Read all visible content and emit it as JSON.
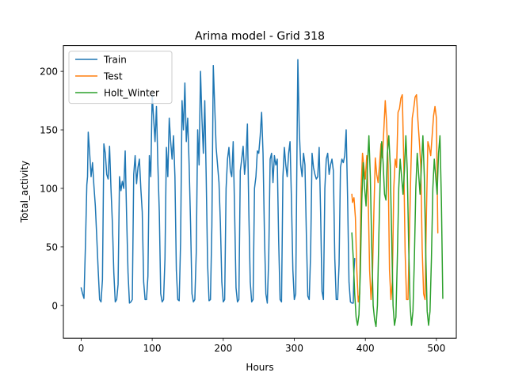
{
  "chart_data": {
    "type": "line",
    "title": "Arima model - Grid 318",
    "xlabel": "Hours",
    "ylabel": "Total_activity",
    "xlim": [
      -25,
      528
    ],
    "ylim": [
      -28,
      222
    ],
    "xticks": [
      0,
      100,
      200,
      300,
      400,
      500
    ],
    "yticks": [
      0,
      50,
      100,
      150,
      200
    ],
    "grid": false,
    "legend_position": "top-left",
    "series": [
      {
        "name": "Train",
        "color": "#1f77b4",
        "points": [
          [
            0,
            15
          ],
          [
            2,
            10
          ],
          [
            4,
            6
          ],
          [
            6,
            50
          ],
          [
            8,
            103
          ],
          [
            9,
            110
          ],
          [
            10,
            148
          ],
          [
            12,
            130
          ],
          [
            14,
            110
          ],
          [
            16,
            122
          ],
          [
            18,
            102
          ],
          [
            20,
            85
          ],
          [
            22,
            58
          ],
          [
            24,
            30
          ],
          [
            26,
            5
          ],
          [
            28,
            3
          ],
          [
            30,
            22
          ],
          [
            32,
            138
          ],
          [
            34,
            130
          ],
          [
            36,
            112
          ],
          [
            38,
            108
          ],
          [
            40,
            136
          ],
          [
            42,
            100
          ],
          [
            44,
            70
          ],
          [
            46,
            28
          ],
          [
            48,
            3
          ],
          [
            50,
            5
          ],
          [
            52,
            18
          ],
          [
            54,
            110
          ],
          [
            56,
            98
          ],
          [
            58,
            106
          ],
          [
            60,
            100
          ],
          [
            62,
            132
          ],
          [
            64,
            76
          ],
          [
            66,
            28
          ],
          [
            68,
            2
          ],
          [
            70,
            3
          ],
          [
            72,
            5
          ],
          [
            74,
            112
          ],
          [
            76,
            128
          ],
          [
            78,
            104
          ],
          [
            80,
            118
          ],
          [
            82,
            125
          ],
          [
            84,
            100
          ],
          [
            86,
            80
          ],
          [
            88,
            20
          ],
          [
            90,
            5
          ],
          [
            92,
            5
          ],
          [
            94,
            25
          ],
          [
            96,
            128
          ],
          [
            98,
            110
          ],
          [
            100,
            180
          ],
          [
            102,
            160
          ],
          [
            104,
            140
          ],
          [
            106,
            170
          ],
          [
            108,
            120
          ],
          [
            110,
            80
          ],
          [
            112,
            10
          ],
          [
            114,
            3
          ],
          [
            116,
            5
          ],
          [
            118,
            40
          ],
          [
            120,
            135
          ],
          [
            122,
            110
          ],
          [
            124,
            160
          ],
          [
            126,
            140
          ],
          [
            128,
            125
          ],
          [
            130,
            145
          ],
          [
            132,
            110
          ],
          [
            134,
            30
          ],
          [
            136,
            5
          ],
          [
            138,
            4
          ],
          [
            140,
            55
          ],
          [
            142,
            175
          ],
          [
            144,
            150
          ],
          [
            146,
            190
          ],
          [
            148,
            140
          ],
          [
            150,
            160
          ],
          [
            152,
            120
          ],
          [
            154,
            70
          ],
          [
            156,
            10
          ],
          [
            158,
            3
          ],
          [
            160,
            5
          ],
          [
            162,
            45
          ],
          [
            164,
            150
          ],
          [
            166,
            120
          ],
          [
            168,
            200
          ],
          [
            170,
            160
          ],
          [
            172,
            130
          ],
          [
            174,
            175
          ],
          [
            176,
            110
          ],
          [
            178,
            35
          ],
          [
            180,
            4
          ],
          [
            182,
            5
          ],
          [
            184,
            68
          ],
          [
            186,
            205
          ],
          [
            188,
            170
          ],
          [
            190,
            135
          ],
          [
            192,
            120
          ],
          [
            194,
            105
          ],
          [
            196,
            70
          ],
          [
            198,
            20
          ],
          [
            200,
            3
          ],
          [
            202,
            5
          ],
          [
            204,
            100
          ],
          [
            206,
            125
          ],
          [
            208,
            135
          ],
          [
            210,
            115
          ],
          [
            212,
            110
          ],
          [
            214,
            140
          ],
          [
            216,
            80
          ],
          [
            218,
            15
          ],
          [
            220,
            3
          ],
          [
            222,
            5
          ],
          [
            224,
            115
          ],
          [
            226,
            125
          ],
          [
            228,
            136
          ],
          [
            230,
            112
          ],
          [
            232,
            125
          ],
          [
            234,
            155
          ],
          [
            236,
            80
          ],
          [
            238,
            20
          ],
          [
            240,
            3
          ],
          [
            242,
            5
          ],
          [
            244,
            100
          ],
          [
            246,
            110
          ],
          [
            248,
            132
          ],
          [
            250,
            130
          ],
          [
            252,
            145
          ],
          [
            254,
            165
          ],
          [
            256,
            130
          ],
          [
            258,
            60
          ],
          [
            260,
            10
          ],
          [
            262,
            2
          ],
          [
            264,
            40
          ],
          [
            266,
            125
          ],
          [
            268,
            130
          ],
          [
            270,
            105
          ],
          [
            272,
            128
          ],
          [
            274,
            120
          ],
          [
            276,
            125
          ],
          [
            278,
            55
          ],
          [
            280,
            5
          ],
          [
            282,
            3
          ],
          [
            284,
            110
          ],
          [
            286,
            135
          ],
          [
            288,
            120
          ],
          [
            290,
            110
          ],
          [
            292,
            130
          ],
          [
            294,
            140
          ],
          [
            296,
            90
          ],
          [
            298,
            30
          ],
          [
            300,
            5
          ],
          [
            302,
            10
          ],
          [
            304,
            148
          ],
          [
            305,
            210
          ],
          [
            307,
            150
          ],
          [
            309,
            120
          ],
          [
            311,
            110
          ],
          [
            313,
            130
          ],
          [
            315,
            120
          ],
          [
            317,
            60
          ],
          [
            319,
            8
          ],
          [
            321,
            5
          ],
          [
            323,
            45
          ],
          [
            325,
            130
          ],
          [
            327,
            118
          ],
          [
            329,
            112
          ],
          [
            331,
            108
          ],
          [
            333,
            110
          ],
          [
            335,
            135
          ],
          [
            337,
            80
          ],
          [
            339,
            12
          ],
          [
            341,
            5
          ],
          [
            343,
            100
          ],
          [
            345,
            125
          ],
          [
            347,
            130
          ],
          [
            349,
            112
          ],
          [
            351,
            120
          ],
          [
            353,
            125
          ],
          [
            355,
            115
          ],
          [
            357,
            40
          ],
          [
            359,
            5
          ],
          [
            361,
            5
          ],
          [
            363,
            35
          ],
          [
            365,
            118
          ],
          [
            367,
            125
          ],
          [
            369,
            122
          ],
          [
            371,
            128
          ],
          [
            373,
            150
          ],
          [
            375,
            92
          ],
          [
            377,
            20
          ],
          [
            379,
            3
          ],
          [
            381,
            2
          ],
          [
            383,
            2
          ],
          [
            384,
            30
          ],
          [
            385,
            40
          ]
        ]
      },
      {
        "name": "Test",
        "color": "#ff7f0e",
        "points": [
          [
            381,
            95
          ],
          [
            382,
            88
          ],
          [
            384,
            92
          ],
          [
            386,
            75
          ],
          [
            388,
            30
          ],
          [
            390,
            3
          ],
          [
            392,
            10
          ],
          [
            394,
            100
          ],
          [
            396,
            130
          ],
          [
            398,
            118
          ],
          [
            400,
            108
          ],
          [
            402,
            128
          ],
          [
            404,
            92
          ],
          [
            406,
            30
          ],
          [
            408,
            5
          ],
          [
            410,
            25
          ],
          [
            412,
            80
          ],
          [
            414,
            126
          ],
          [
            416,
            112
          ],
          [
            418,
            105
          ],
          [
            420,
            121
          ],
          [
            422,
            138
          ],
          [
            424,
            126
          ],
          [
            426,
            150
          ],
          [
            428,
            175
          ],
          [
            430,
            155
          ],
          [
            432,
            120
          ],
          [
            434,
            30
          ],
          [
            436,
            5
          ],
          [
            438,
            20
          ],
          [
            440,
            100
          ],
          [
            442,
            125
          ],
          [
            444,
            118
          ],
          [
            446,
            165
          ],
          [
            448,
            168
          ],
          [
            450,
            177
          ],
          [
            452,
            180
          ],
          [
            454,
            125
          ],
          [
            456,
            45
          ],
          [
            458,
            5
          ],
          [
            460,
            5
          ],
          [
            462,
            60
          ],
          [
            464,
            115
          ],
          [
            466,
            160
          ],
          [
            468,
            168
          ],
          [
            470,
            178
          ],
          [
            472,
            180
          ],
          [
            474,
            158
          ],
          [
            476,
            140
          ],
          [
            478,
            120
          ],
          [
            480,
            48
          ],
          [
            482,
            10
          ],
          [
            484,
            5
          ],
          [
            486,
            80
          ],
          [
            488,
            140
          ],
          [
            490,
            135
          ],
          [
            492,
            128
          ],
          [
            494,
            145
          ],
          [
            496,
            162
          ],
          [
            498,
            170
          ],
          [
            500,
            160
          ],
          [
            502,
            62
          ]
        ]
      },
      {
        "name": "Holt_Winter",
        "color": "#2ca02c",
        "points": [
          [
            381,
            62
          ],
          [
            383,
            40
          ],
          [
            385,
            10
          ],
          [
            387,
            -10
          ],
          [
            389,
            -17
          ],
          [
            391,
            -8
          ],
          [
            393,
            30
          ],
          [
            395,
            90
          ],
          [
            397,
            122
          ],
          [
            399,
            100
          ],
          [
            401,
            85
          ],
          [
            403,
            120
          ],
          [
            405,
            145
          ],
          [
            407,
            110
          ],
          [
            409,
            50
          ],
          [
            411,
            0
          ],
          [
            413,
            -12
          ],
          [
            415,
            -18
          ],
          [
            417,
            0
          ],
          [
            419,
            60
          ],
          [
            421,
            110
          ],
          [
            423,
            140
          ],
          [
            425,
            122
          ],
          [
            427,
            95
          ],
          [
            429,
            90
          ],
          [
            431,
            130
          ],
          [
            433,
            145
          ],
          [
            435,
            120
          ],
          [
            437,
            60
          ],
          [
            439,
            0
          ],
          [
            441,
            -17
          ],
          [
            443,
            -10
          ],
          [
            445,
            40
          ],
          [
            447,
            100
          ],
          [
            449,
            125
          ],
          [
            451,
            110
          ],
          [
            453,
            95
          ],
          [
            455,
            115
          ],
          [
            457,
            145
          ],
          [
            459,
            115
          ],
          [
            461,
            50
          ],
          [
            463,
            0
          ],
          [
            465,
            -17
          ],
          [
            467,
            -5
          ],
          [
            469,
            40
          ],
          [
            471,
            100
          ],
          [
            473,
            130
          ],
          [
            475,
            112
          ],
          [
            477,
            95
          ],
          [
            479,
            120
          ],
          [
            481,
            145
          ],
          [
            483,
            110
          ],
          [
            485,
            45
          ],
          [
            487,
            -5
          ],
          [
            489,
            -17
          ],
          [
            491,
            -5
          ],
          [
            493,
            40
          ],
          [
            495,
            100
          ],
          [
            497,
            125
          ],
          [
            499,
            110
          ],
          [
            501,
            95
          ],
          [
            503,
            130
          ],
          [
            505,
            145
          ],
          [
            507,
            90
          ],
          [
            509,
            6
          ]
        ]
      }
    ]
  }
}
